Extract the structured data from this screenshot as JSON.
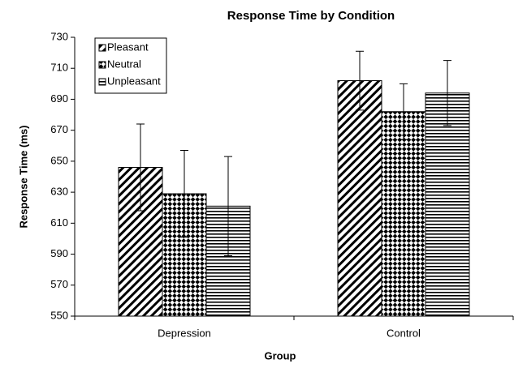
{
  "chart_data": {
    "type": "bar",
    "title": "Response Time by Condition",
    "x_label": "Group",
    "y_label": "Response Time (ms)",
    "categories": [
      "Depression",
      "Control"
    ],
    "series": [
      {
        "name": "Pleasant",
        "color": "#000000",
        "pattern": "diagonal",
        "values": [
          646,
          702
        ],
        "errors": [
          28,
          19
        ]
      },
      {
        "name": "Neutral",
        "color": "#000000",
        "pattern": "checker",
        "values": [
          629,
          682
        ],
        "errors": [
          28,
          18
        ]
      },
      {
        "name": "Unpleasant",
        "color": "#000000",
        "pattern": "horizontal",
        "values": [
          621,
          694
        ],
        "errors": [
          32,
          21
        ]
      }
    ],
    "ylim": [
      550,
      730
    ],
    "yticks": [
      550,
      570,
      590,
      610,
      630,
      650,
      670,
      690,
      710,
      730
    ],
    "grid": false,
    "legend": "upper left"
  }
}
